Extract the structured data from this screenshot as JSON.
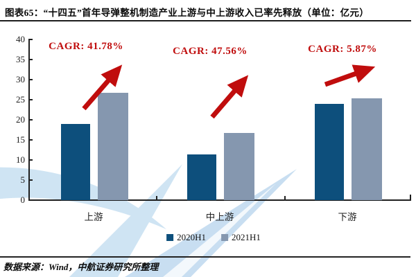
{
  "header": {
    "title": "图表65：“十四五”首年导弹整机制造产业上游与中上游收入已率先释放（单位：亿元）"
  },
  "chart_data": {
    "type": "bar",
    "categories": [
      "上游",
      "中上游",
      "下游"
    ],
    "series": [
      {
        "name": "2020H1",
        "color": "#0d4f7c",
        "values": [
          18.9,
          11.4,
          24.0
        ]
      },
      {
        "name": "2021H1",
        "color": "#8597af",
        "values": [
          26.8,
          16.8,
          25.4
        ]
      }
    ],
    "annotations": [
      {
        "label": "CAGR: 41.78%"
      },
      {
        "label": "CAGR: 47.56%"
      },
      {
        "label": "CAGR: 5.87%"
      }
    ],
    "ylim": [
      0,
      40
    ],
    "yticks": [
      0,
      5,
      10,
      15,
      20,
      25,
      30,
      35,
      40
    ],
    "grid": false,
    "legend_position": "bottom",
    "annotation_color": "#c00d0d",
    "arrow_color": "#c00d0d",
    "axis_color": "#1f1f1f",
    "watermark_color": "#cfe4f3"
  },
  "footer": {
    "source": "数据来源：Wind，中航证券研究所整理"
  }
}
